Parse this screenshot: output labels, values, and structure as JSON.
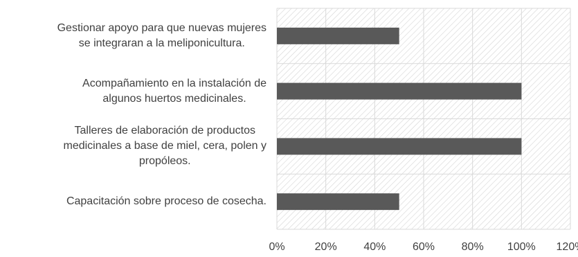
{
  "chart_data": {
    "type": "bar",
    "orientation": "horizontal",
    "categories": [
      [
        "Gestionar apoyo para que nuevas mujeres",
        "se integraran a la meliponicultura."
      ],
      [
        "Acompañamiento en la instalación de",
        "algunos huertos medicinales."
      ],
      [
        "Talleres de elaboración de productos",
        "medicinales a base de miel, cera, polen y",
        "propóleos."
      ],
      [
        "Capacitación sobre proceso de cosecha."
      ]
    ],
    "values": [
      0.5,
      1.0,
      1.0,
      0.5
    ],
    "xlim": [
      0,
      1.2
    ],
    "xticks": [
      "0%",
      "20%",
      "40%",
      "60%",
      "80%",
      "100%",
      "120%"
    ],
    "title": "",
    "xlabel": "",
    "ylabel": "",
    "grid": true,
    "plot_background": "diagonal-hatch",
    "colors": {
      "bar": "#595959",
      "grid": "#d9d9d9",
      "hatch": "#d4d4d4"
    }
  }
}
